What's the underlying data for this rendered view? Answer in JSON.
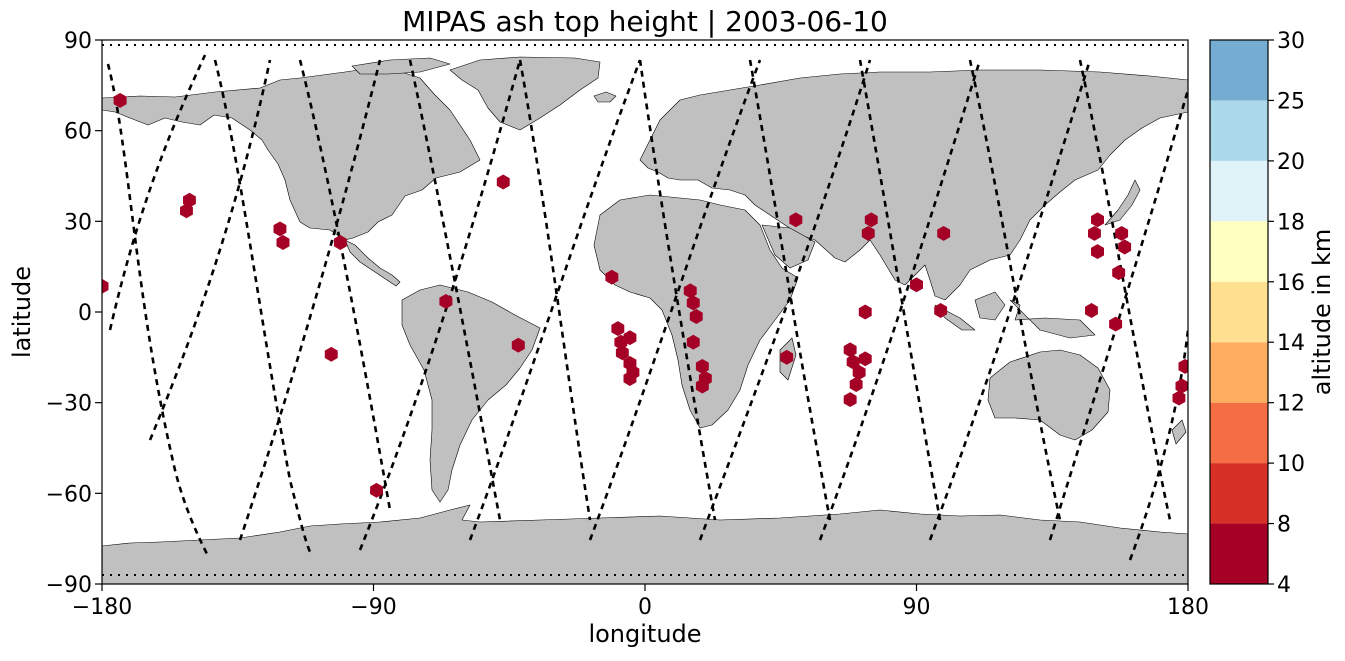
{
  "chart_data": {
    "type": "scatter",
    "title": "MIPAS ash top height | 2003-06-10",
    "xlabel": "longitude",
    "ylabel": "latitude",
    "xlim": [
      -180,
      180
    ],
    "ylim": [
      -90,
      90
    ],
    "xticks": [
      -180,
      -90,
      0,
      90,
      180
    ],
    "yticks": [
      -90,
      -60,
      -30,
      0,
      30,
      60,
      90
    ],
    "xtick_labels": [
      "−180",
      "−90",
      "0",
      "90",
      "180"
    ],
    "ytick_labels": [
      "−90",
      "−60",
      "−30",
      "0",
      "30",
      "60",
      "90"
    ],
    "background": "world map, land grey #c0c0c0, coastlines black",
    "grid": false,
    "orbit_tracks": {
      "style": "black dashed lines (MIPAS orbit measurement tracks)",
      "color": "#000000"
    },
    "points": {
      "marker": "hexagon",
      "color": "#a50026",
      "category_from_colorbar": "4–8 km",
      "coords": [
        [
          -174,
          70
        ],
        [
          -180,
          8.5
        ],
        [
          -151,
          37
        ],
        [
          -152,
          33.5
        ],
        [
          -121,
          27.5
        ],
        [
          -120,
          23
        ],
        [
          -101,
          23
        ],
        [
          -104,
          -14
        ],
        [
          -89,
          -59
        ],
        [
          -66,
          3.5
        ],
        [
          -47,
          43
        ],
        [
          -42,
          -11
        ],
        [
          -11,
          11.5
        ],
        [
          -9,
          -5.5
        ],
        [
          -8,
          -10
        ],
        [
          -7.5,
          -13.5
        ],
        [
          -5,
          -17
        ],
        [
          -4,
          -20
        ],
        [
          -5,
          -22
        ],
        [
          -5,
          -8.5
        ],
        [
          15,
          7
        ],
        [
          16,
          3
        ],
        [
          17,
          -1.5
        ],
        [
          16,
          -10
        ],
        [
          19,
          -18
        ],
        [
          20,
          -22
        ],
        [
          19,
          -24.5
        ],
        [
          47,
          -15
        ],
        [
          50,
          30.5
        ],
        [
          68,
          -12.5
        ],
        [
          69,
          -16.5
        ],
        [
          71,
          -20
        ],
        [
          70,
          -24
        ],
        [
          68,
          -29
        ],
        [
          73,
          -15.5
        ],
        [
          73,
          0
        ],
        [
          74,
          26
        ],
        [
          75,
          30.5
        ],
        [
          90,
          9
        ],
        [
          98,
          0.5
        ],
        [
          99,
          26
        ],
        [
          148,
          0.5
        ],
        [
          149,
          26
        ],
        [
          150,
          30.5
        ],
        [
          150,
          20
        ],
        [
          156,
          -4
        ],
        [
          157,
          13
        ],
        [
          158,
          26
        ],
        [
          159,
          21.5
        ],
        [
          179,
          -18
        ],
        [
          178,
          -24.5
        ],
        [
          177,
          -28.5
        ]
      ]
    },
    "colorbar": {
      "label": "altitude in km",
      "boundaries": [
        4,
        8,
        10,
        12,
        14,
        16,
        18,
        20,
        25,
        30
      ],
      "tick_labels": [
        "4",
        "8",
        "10",
        "12",
        "14",
        "16",
        "18",
        "20",
        "25",
        "30"
      ],
      "colors": [
        "#a50026",
        "#d73027",
        "#f46d43",
        "#fdae61",
        "#fee090",
        "#ffffbf",
        "#e0f3f8",
        "#abd9e9",
        "#74add1",
        "#313695"
      ]
    }
  },
  "colors": {
    "land": "#c0c0c0",
    "coast": "#000000",
    "ocean": "#ffffff",
    "marker": "#a50026"
  }
}
